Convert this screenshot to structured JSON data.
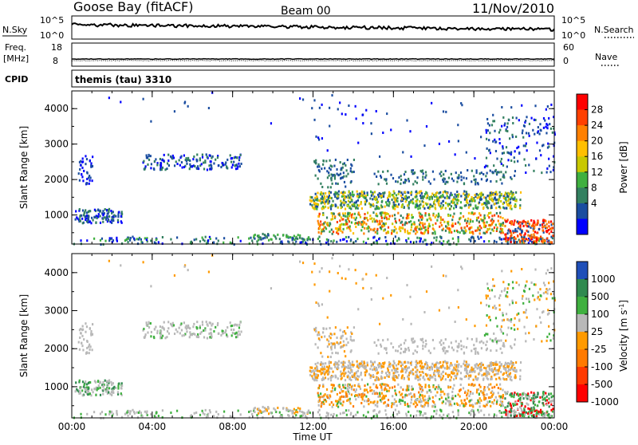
{
  "header": {
    "station": "Goose Bay (fitACF)",
    "beam": "Beam 00",
    "date": "11/Nov/2010"
  },
  "strips": {
    "nsky_label": "N.Sky",
    "nsky_ticks": [
      "10^5",
      "10^0"
    ],
    "nsearch_label": "N.Search",
    "nsearch_ticks": [
      "10^5",
      "10^0"
    ],
    "freq_label": "Freq.",
    "freq_unit": "[MHz]",
    "freq_ticks": [
      "18",
      "8"
    ],
    "nave_label": "Nave",
    "nave_ticks": [
      "60",
      "0"
    ],
    "cpid_label": "CPID",
    "cpid_value": "themis (tau) 3310"
  },
  "chart_data": [
    {
      "type": "heatmap",
      "panel": "power",
      "ylabel": "Slant Range [km]",
      "xlabel": "",
      "colorbar_label": "Power [dB]",
      "colorbar_ticks": [
        "28",
        "24",
        "20",
        "16",
        "12",
        "8",
        "4"
      ],
      "colorbar_colors": [
        "#ff0000",
        "#ff4000",
        "#ff8000",
        "#ffbf00",
        "#c8c800",
        "#3fb03f",
        "#338060",
        "#1a4da0",
        "#0000ff"
      ],
      "xlim": [
        "00:00",
        "24:00"
      ],
      "ylim": [
        180,
        4500
      ],
      "yticks": [
        "1000",
        "2000",
        "3000",
        "4000"
      ],
      "xticks": [
        "00:00",
        "04:00",
        "08:00",
        "12:00",
        "16:00",
        "20:00",
        "00:00"
      ]
    },
    {
      "type": "heatmap",
      "panel": "velocity",
      "ylabel": "Slant Range [km]",
      "xlabel": "Time UT",
      "colorbar_label": "Velocity [m s^-1]",
      "colorbar_ticks": [
        "1000",
        "500",
        "100",
        "25",
        "-25",
        "-100",
        "-500",
        "-1000"
      ],
      "colorbar_colors": [
        "#1f4fb8",
        "#2f8a4f",
        "#3fb03f",
        "#b8b8b8",
        "#ff9a00",
        "#ff7a00",
        "#ff3a00",
        "#ff0000"
      ],
      "xlim": [
        "00:00",
        "24:00"
      ],
      "ylim": [
        180,
        4500
      ],
      "yticks": [
        "1000",
        "2000",
        "3000",
        "4000"
      ],
      "xticks": [
        "00:00",
        "04:00",
        "08:00",
        "12:00",
        "16:00",
        "20:00",
        "00:00"
      ]
    }
  ]
}
